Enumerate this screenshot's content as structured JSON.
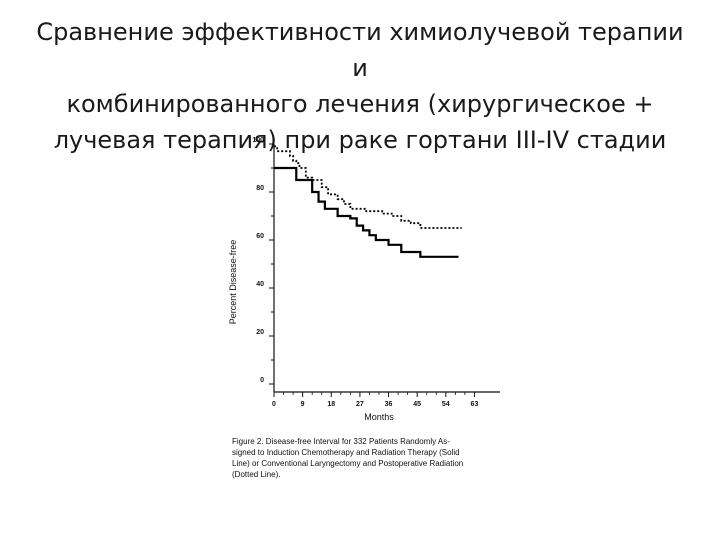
{
  "slide": {
    "title_lines": [
      "Сравнение эффективности химиолучевой терапии и",
      "комбинированного лечения (хирургическое +",
      "лучевая терапия) при раке гортани III-IV стадии"
    ]
  },
  "caption": {
    "lines": [
      "Figure 2. Disease-free Interval for 332 Patients Randomly As-",
      "signed to Induction Chemotherapy and Radiation Therapy (Solid",
      "Line) or Conventional Laryngectomy and Postoperative Radiation",
      "(Dotted Line)."
    ]
  },
  "chart_data": {
    "type": "line",
    "xlabel": "Months",
    "ylabel": "Percent Disease-free",
    "xlim": [
      0,
      66
    ],
    "ylim": [
      0,
      100
    ],
    "x_ticks": [
      0,
      9,
      18,
      27,
      36,
      45,
      54,
      63
    ],
    "y_ticks": [
      0,
      20,
      40,
      60,
      80,
      100
    ],
    "grid": false,
    "series": [
      {
        "style": "solid",
        "color": "#000000",
        "x": [
          0,
          6,
          7,
          9,
          12,
          14,
          16,
          18,
          20,
          24,
          26,
          28,
          30,
          32,
          36,
          40,
          46,
          50,
          58
        ],
        "y": [
          90,
          90,
          85,
          85,
          80,
          76,
          73,
          73,
          70,
          69,
          66,
          64,
          62,
          60,
          58,
          55,
          53,
          53,
          53
        ]
      },
      {
        "style": "dotted",
        "color": "#000000",
        "x": [
          0,
          1,
          4,
          5,
          6,
          7,
          8,
          9,
          10,
          12,
          15,
          17,
          20,
          22,
          24,
          29,
          34,
          37,
          40,
          43,
          46,
          51,
          59
        ],
        "y": [
          99,
          97,
          97,
          95,
          93,
          92,
          90,
          90,
          86,
          85,
          82,
          79,
          77,
          75,
          73,
          72,
          71,
          70,
          68,
          67,
          65,
          65,
          65
        ]
      }
    ]
  }
}
